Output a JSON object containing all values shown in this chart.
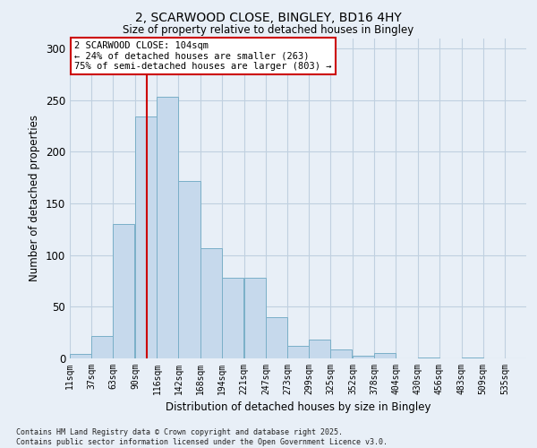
{
  "title1": "2, SCARWOOD CLOSE, BINGLEY, BD16 4HY",
  "title2": "Size of property relative to detached houses in Bingley",
  "xlabel": "Distribution of detached houses by size in Bingley",
  "ylabel": "Number of detached properties",
  "bin_labels": [
    "11sqm",
    "37sqm",
    "63sqm",
    "90sqm",
    "116sqm",
    "142sqm",
    "168sqm",
    "194sqm",
    "221sqm",
    "247sqm",
    "273sqm",
    "299sqm",
    "325sqm",
    "352sqm",
    "378sqm",
    "404sqm",
    "430sqm",
    "456sqm",
    "483sqm",
    "509sqm",
    "535sqm"
  ],
  "bar_values": [
    4,
    22,
    130,
    234,
    253,
    172,
    107,
    78,
    78,
    40,
    12,
    18,
    9,
    3,
    5,
    0,
    1,
    0,
    1,
    0
  ],
  "bar_color": "#c6d9ec",
  "bar_edge_color": "#7aafc8",
  "grid_color": "#c0d0e0",
  "background_color": "#e8eff7",
  "vline_color": "#cc0000",
  "bin_starts": [
    11,
    37,
    63,
    90,
    116,
    142,
    168,
    194,
    221,
    247,
    273,
    299,
    325,
    352,
    378,
    404,
    430,
    456,
    483,
    509
  ],
  "bin_width": 26,
  "vline_x": 104,
  "annotation_text": "2 SCARWOOD CLOSE: 104sqm\n← 24% of detached houses are smaller (263)\n75% of semi-detached houses are larger (803) →",
  "annotation_box_color": "#ffffff",
  "annotation_border_color": "#cc0000",
  "footer": "Contains HM Land Registry data © Crown copyright and database right 2025.\nContains public sector information licensed under the Open Government Licence v3.0.",
  "ylim": [
    0,
    310
  ],
  "yticks": [
    0,
    50,
    100,
    150,
    200,
    250,
    300
  ],
  "xlim_left": 11,
  "xlim_right": 561
}
